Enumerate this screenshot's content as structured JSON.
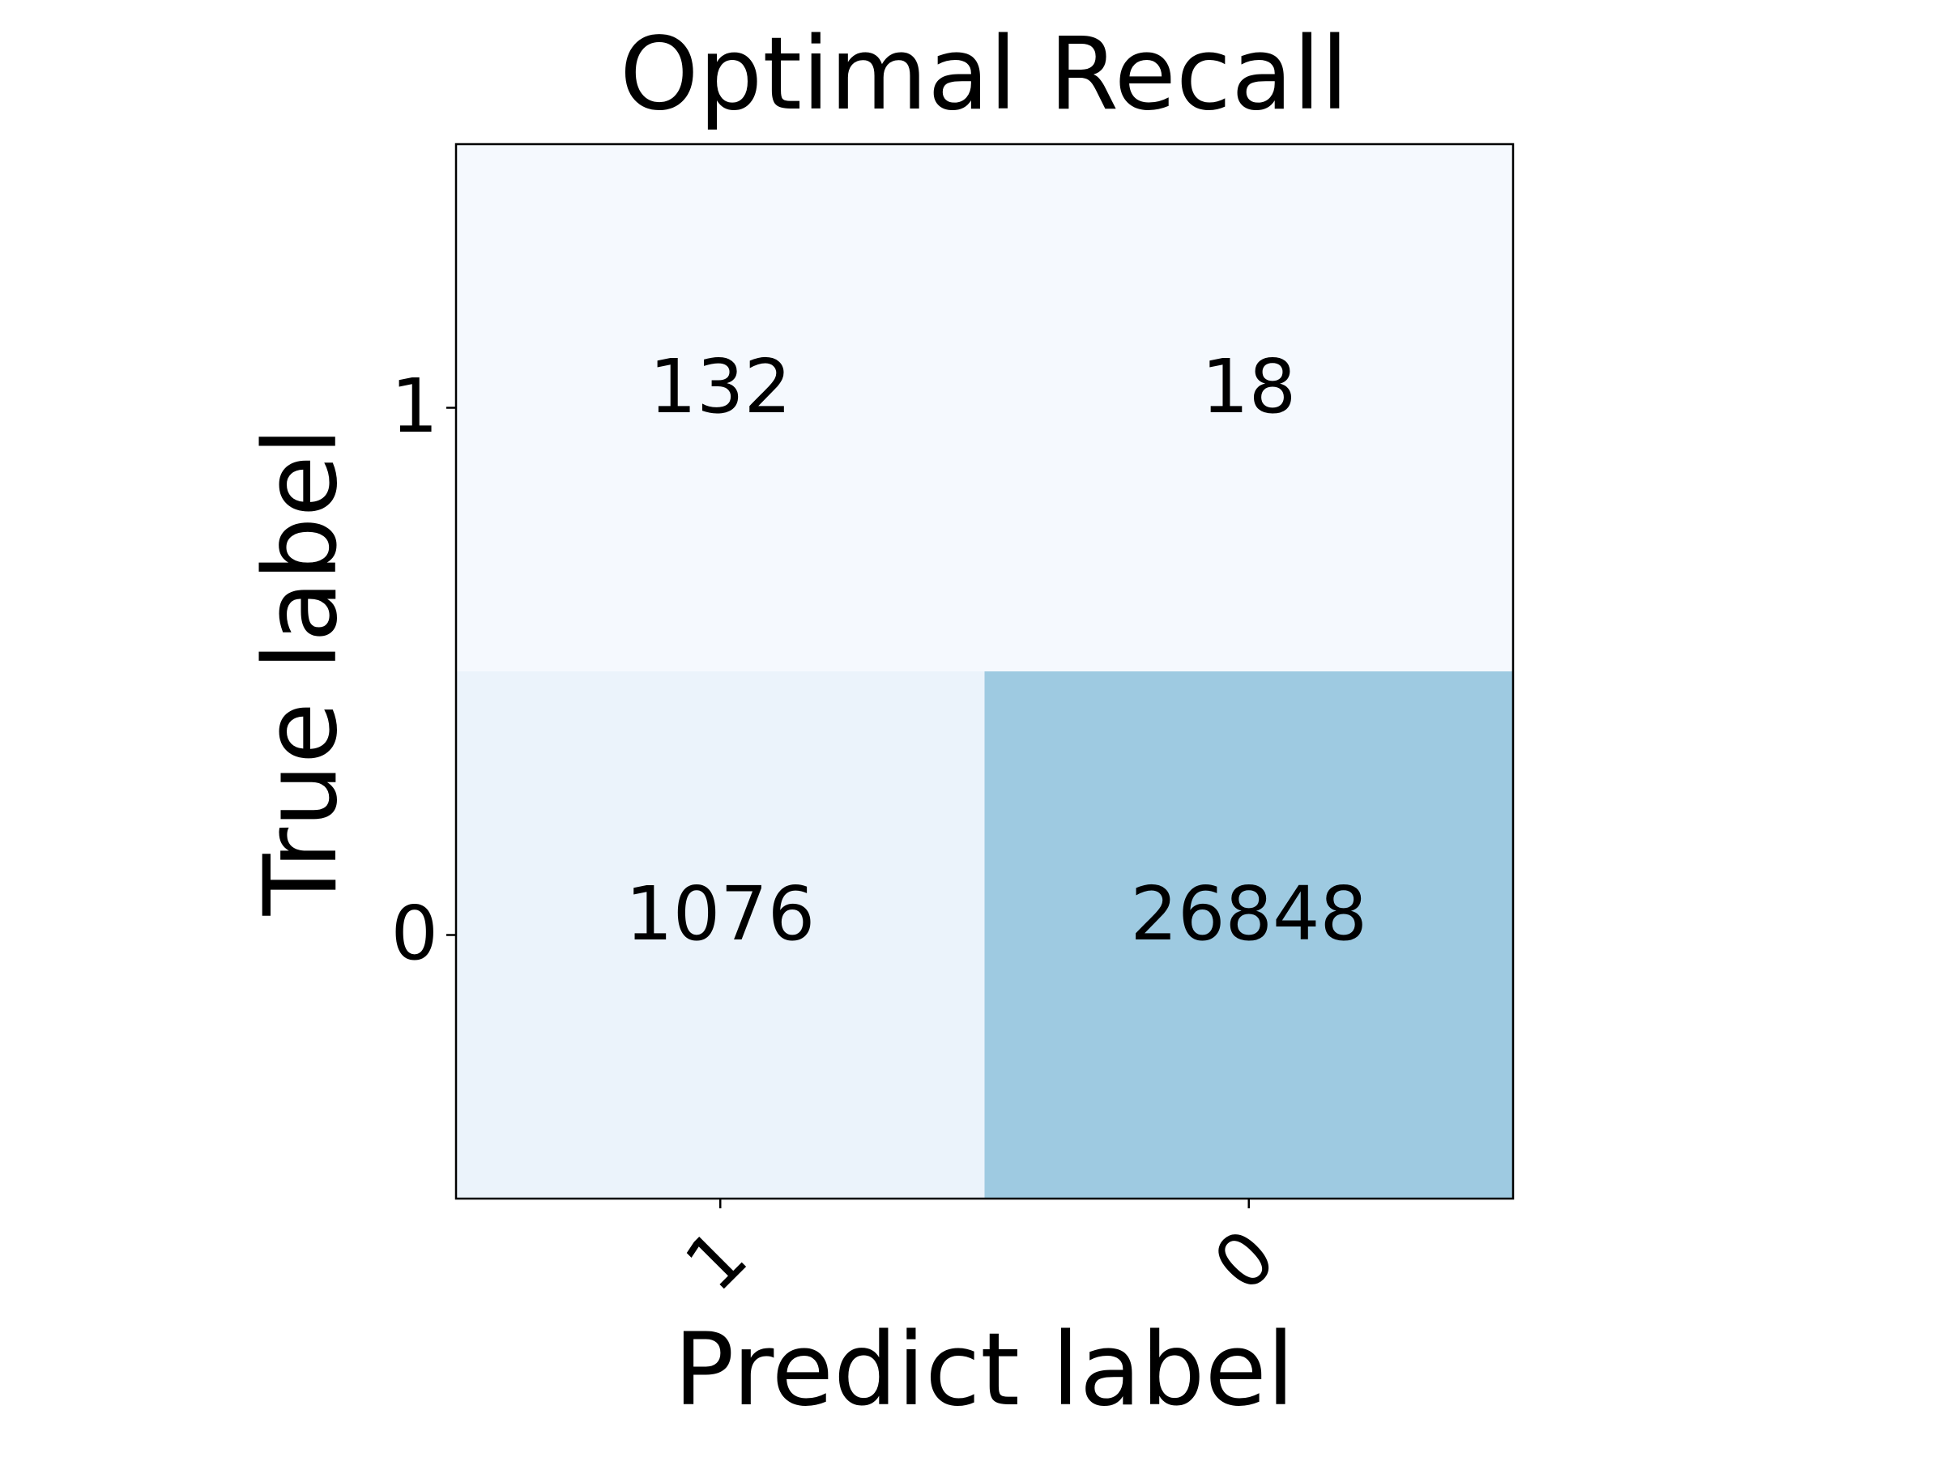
{
  "chart_data": {
    "type": "heatmap",
    "title": "Optimal Recall",
    "x_label": "Predict label",
    "y_label": "True label",
    "x_categories": [
      "1",
      "0"
    ],
    "y_categories": [
      "1",
      "0"
    ],
    "values": [
      [
        132,
        18
      ],
      [
        1076,
        26848
      ]
    ],
    "colors": [
      [
        "#f5f9fe",
        "#f5f9fe"
      ],
      [
        "#ebf3fb",
        "#9ecae1"
      ]
    ]
  }
}
